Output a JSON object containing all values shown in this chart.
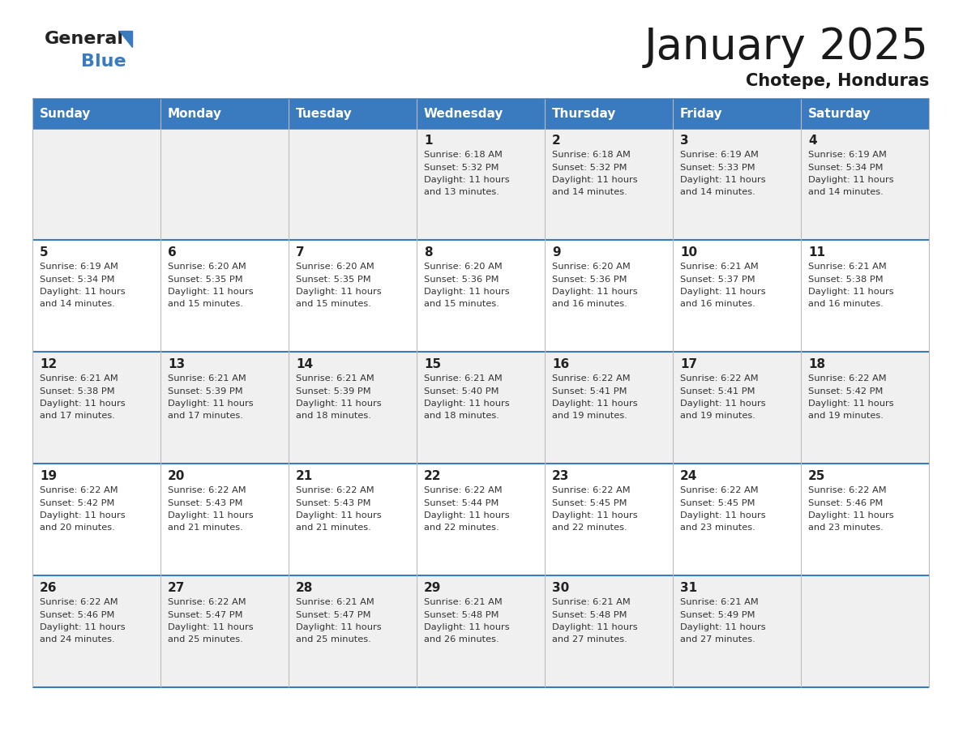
{
  "title": "January 2025",
  "subtitle": "Chotepe, Honduras",
  "header_color": "#3a7abf",
  "header_text_color": "#ffffff",
  "row_bg_colors": [
    "#f0f0f0",
    "#ffffff",
    "#f0f0f0",
    "#ffffff",
    "#f0f0f0"
  ],
  "grid_line_color": "#3a7abf",
  "day_names": [
    "Sunday",
    "Monday",
    "Tuesday",
    "Wednesday",
    "Thursday",
    "Friday",
    "Saturday"
  ],
  "days": [
    {
      "day": 1,
      "col": 3,
      "row": 0,
      "sunrise": "6:18 AM",
      "sunset": "5:32 PM",
      "daylight": "11 hours and 13 minutes."
    },
    {
      "day": 2,
      "col": 4,
      "row": 0,
      "sunrise": "6:18 AM",
      "sunset": "5:32 PM",
      "daylight": "11 hours and 14 minutes."
    },
    {
      "day": 3,
      "col": 5,
      "row": 0,
      "sunrise": "6:19 AM",
      "sunset": "5:33 PM",
      "daylight": "11 hours and 14 minutes."
    },
    {
      "day": 4,
      "col": 6,
      "row": 0,
      "sunrise": "6:19 AM",
      "sunset": "5:34 PM",
      "daylight": "11 hours and 14 minutes."
    },
    {
      "day": 5,
      "col": 0,
      "row": 1,
      "sunrise": "6:19 AM",
      "sunset": "5:34 PM",
      "daylight": "11 hours and 14 minutes."
    },
    {
      "day": 6,
      "col": 1,
      "row": 1,
      "sunrise": "6:20 AM",
      "sunset": "5:35 PM",
      "daylight": "11 hours and 15 minutes."
    },
    {
      "day": 7,
      "col": 2,
      "row": 1,
      "sunrise": "6:20 AM",
      "sunset": "5:35 PM",
      "daylight": "11 hours and 15 minutes."
    },
    {
      "day": 8,
      "col": 3,
      "row": 1,
      "sunrise": "6:20 AM",
      "sunset": "5:36 PM",
      "daylight": "11 hours and 15 minutes."
    },
    {
      "day": 9,
      "col": 4,
      "row": 1,
      "sunrise": "6:20 AM",
      "sunset": "5:36 PM",
      "daylight": "11 hours and 16 minutes."
    },
    {
      "day": 10,
      "col": 5,
      "row": 1,
      "sunrise": "6:21 AM",
      "sunset": "5:37 PM",
      "daylight": "11 hours and 16 minutes."
    },
    {
      "day": 11,
      "col": 6,
      "row": 1,
      "sunrise": "6:21 AM",
      "sunset": "5:38 PM",
      "daylight": "11 hours and 16 minutes."
    },
    {
      "day": 12,
      "col": 0,
      "row": 2,
      "sunrise": "6:21 AM",
      "sunset": "5:38 PM",
      "daylight": "11 hours and 17 minutes."
    },
    {
      "day": 13,
      "col": 1,
      "row": 2,
      "sunrise": "6:21 AM",
      "sunset": "5:39 PM",
      "daylight": "11 hours and 17 minutes."
    },
    {
      "day": 14,
      "col": 2,
      "row": 2,
      "sunrise": "6:21 AM",
      "sunset": "5:39 PM",
      "daylight": "11 hours and 18 minutes."
    },
    {
      "day": 15,
      "col": 3,
      "row": 2,
      "sunrise": "6:21 AM",
      "sunset": "5:40 PM",
      "daylight": "11 hours and 18 minutes."
    },
    {
      "day": 16,
      "col": 4,
      "row": 2,
      "sunrise": "6:22 AM",
      "sunset": "5:41 PM",
      "daylight": "11 hours and 19 minutes."
    },
    {
      "day": 17,
      "col": 5,
      "row": 2,
      "sunrise": "6:22 AM",
      "sunset": "5:41 PM",
      "daylight": "11 hours and 19 minutes."
    },
    {
      "day": 18,
      "col": 6,
      "row": 2,
      "sunrise": "6:22 AM",
      "sunset": "5:42 PM",
      "daylight": "11 hours and 19 minutes."
    },
    {
      "day": 19,
      "col": 0,
      "row": 3,
      "sunrise": "6:22 AM",
      "sunset": "5:42 PM",
      "daylight": "11 hours and 20 minutes."
    },
    {
      "day": 20,
      "col": 1,
      "row": 3,
      "sunrise": "6:22 AM",
      "sunset": "5:43 PM",
      "daylight": "11 hours and 21 minutes."
    },
    {
      "day": 21,
      "col": 2,
      "row": 3,
      "sunrise": "6:22 AM",
      "sunset": "5:43 PM",
      "daylight": "11 hours and 21 minutes."
    },
    {
      "day": 22,
      "col": 3,
      "row": 3,
      "sunrise": "6:22 AM",
      "sunset": "5:44 PM",
      "daylight": "11 hours and 22 minutes."
    },
    {
      "day": 23,
      "col": 4,
      "row": 3,
      "sunrise": "6:22 AM",
      "sunset": "5:45 PM",
      "daylight": "11 hours and 22 minutes."
    },
    {
      "day": 24,
      "col": 5,
      "row": 3,
      "sunrise": "6:22 AM",
      "sunset": "5:45 PM",
      "daylight": "11 hours and 23 minutes."
    },
    {
      "day": 25,
      "col": 6,
      "row": 3,
      "sunrise": "6:22 AM",
      "sunset": "5:46 PM",
      "daylight": "11 hours and 23 minutes."
    },
    {
      "day": 26,
      "col": 0,
      "row": 4,
      "sunrise": "6:22 AM",
      "sunset": "5:46 PM",
      "daylight": "11 hours and 24 minutes."
    },
    {
      "day": 27,
      "col": 1,
      "row": 4,
      "sunrise": "6:22 AM",
      "sunset": "5:47 PM",
      "daylight": "11 hours and 25 minutes."
    },
    {
      "day": 28,
      "col": 2,
      "row": 4,
      "sunrise": "6:21 AM",
      "sunset": "5:47 PM",
      "daylight": "11 hours and 25 minutes."
    },
    {
      "day": 29,
      "col": 3,
      "row": 4,
      "sunrise": "6:21 AM",
      "sunset": "5:48 PM",
      "daylight": "11 hours and 26 minutes."
    },
    {
      "day": 30,
      "col": 4,
      "row": 4,
      "sunrise": "6:21 AM",
      "sunset": "5:48 PM",
      "daylight": "11 hours and 27 minutes."
    },
    {
      "day": 31,
      "col": 5,
      "row": 4,
      "sunrise": "6:21 AM",
      "sunset": "5:49 PM",
      "daylight": "11 hours and 27 minutes."
    }
  ],
  "fig_width": 11.88,
  "fig_height": 9.18,
  "fig_dpi": 100
}
